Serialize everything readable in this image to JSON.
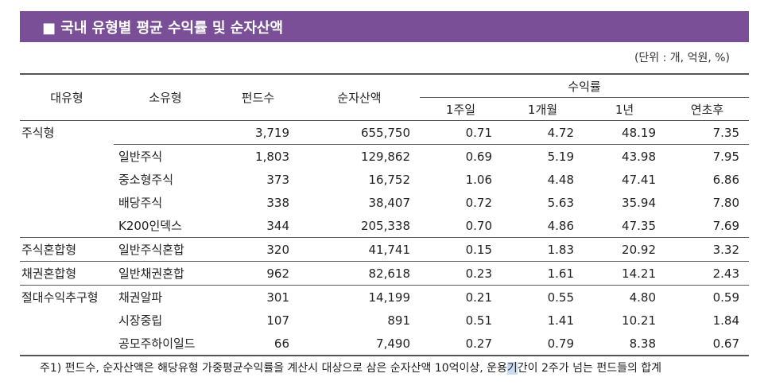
{
  "title": "■ 국내 유형별 평균 수익률 및 순자산액",
  "unit_note": "(단위 : 개, 억원, %)",
  "headers": {
    "major": "대유형",
    "minor": "소유형",
    "funds": "펀드수",
    "assets": "순자산액",
    "returns": "수익률",
    "w1": "1주일",
    "m1": "1개월",
    "y1": "1년",
    "ytd": "연초후"
  },
  "rows": [
    {
      "major": "주식형",
      "minor": "",
      "funds": "3,719",
      "assets": "655,750",
      "w1": "0.71",
      "m1": "4.72",
      "y1": "48.19",
      "ytd": "7.35"
    },
    {
      "major": "",
      "minor": "일반주식",
      "funds": "1,803",
      "assets": "129,862",
      "w1": "0.69",
      "m1": "5.19",
      "y1": "43.98",
      "ytd": "7.95"
    },
    {
      "major": "",
      "minor": "중소형주식",
      "funds": "373",
      "assets": "16,752",
      "w1": "1.06",
      "m1": "4.48",
      "y1": "47.41",
      "ytd": "6.86"
    },
    {
      "major": "",
      "minor": "배당주식",
      "funds": "338",
      "assets": "38,407",
      "w1": "0.72",
      "m1": "5.63",
      "y1": "35.94",
      "ytd": "7.80"
    },
    {
      "major": "",
      "minor": "K200인덱스",
      "funds": "344",
      "assets": "205,338",
      "w1": "0.70",
      "m1": "4.86",
      "y1": "47.35",
      "ytd": "7.69"
    },
    {
      "major": "주식혼합형",
      "minor": "일반주식혼합",
      "funds": "320",
      "assets": "41,741",
      "w1": "0.15",
      "m1": "1.83",
      "y1": "20.92",
      "ytd": "3.32"
    },
    {
      "major": "채권혼합형",
      "minor": "일반채권혼합",
      "funds": "962",
      "assets": "82,618",
      "w1": "0.23",
      "m1": "1.61",
      "y1": "14.21",
      "ytd": "2.43"
    },
    {
      "major": "절대수익추구형",
      "minor": "채권알파",
      "funds": "301",
      "assets": "14,199",
      "w1": "0.21",
      "m1": "0.55",
      "y1": "4.80",
      "ytd": "0.59"
    },
    {
      "major": "",
      "minor": "시장중립",
      "funds": "107",
      "assets": "891",
      "w1": "0.51",
      "m1": "1.41",
      "y1": "10.21",
      "ytd": "1.84"
    },
    {
      "major": "",
      "minor": "공모주하이일드",
      "funds": "66",
      "assets": "7,490",
      "w1": "0.27",
      "m1": "0.79",
      "y1": "8.38",
      "ytd": "0.67"
    }
  ],
  "footnote": {
    "before": "주1) 펀드수, 순자산액은 해당유형 가중평균수익률을 계산시 대상으로 삼은 순자산액 10억이상, 운용",
    "highlight": "기",
    "after": "간이 2주가 넘는 펀드들의 합계"
  }
}
